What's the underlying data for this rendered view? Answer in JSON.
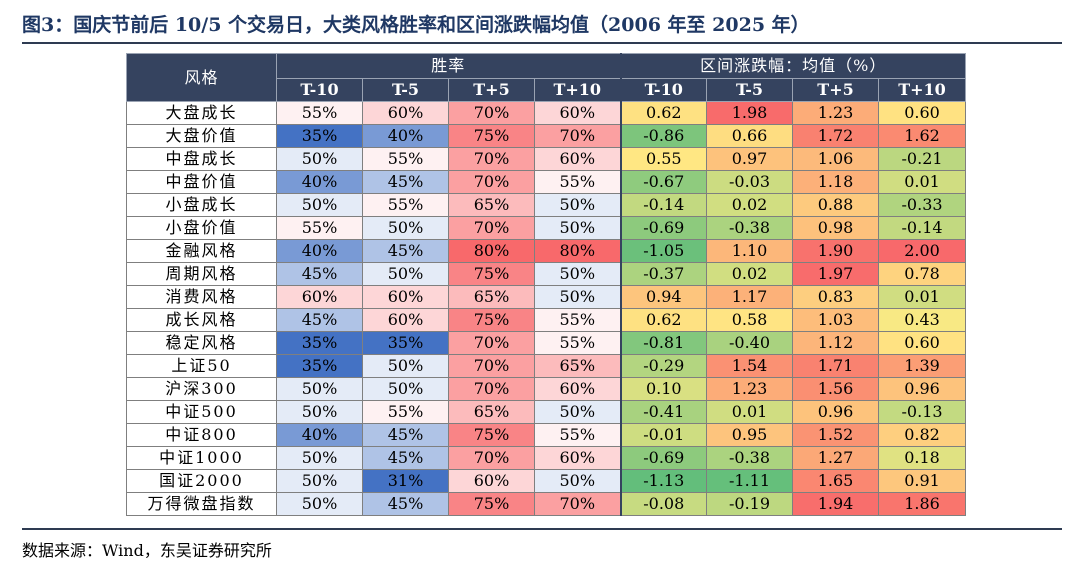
{
  "title": "图3：国庆节前后 10/5 个交易日，大类风格胜率和区间涨跌幅均值（2006 年至 2025 年）",
  "source": "数据来源：Wind，东吴证券研究所",
  "table": {
    "row_header_label": "风格",
    "groups": [
      {
        "label": "胜率",
        "span": 4
      },
      {
        "label": "区间涨跌幅：均值（%）",
        "span": 4
      }
    ],
    "columns": [
      "T-10",
      "T-5",
      "T+5",
      "T+10",
      "T-10",
      "T-5",
      "T+5",
      "T+10"
    ],
    "rows": [
      {
        "name": "大盘成长",
        "win": [
          "55%",
          "60%",
          "70%",
          "60%"
        ],
        "ret": [
          "0.62",
          "1.98",
          "1.23",
          "0.60"
        ]
      },
      {
        "name": "大盘价值",
        "win": [
          "35%",
          "40%",
          "75%",
          "70%"
        ],
        "ret": [
          "-0.86",
          "0.66",
          "1.72",
          "1.62"
        ]
      },
      {
        "name": "中盘成长",
        "win": [
          "50%",
          "55%",
          "70%",
          "60%"
        ],
        "ret": [
          "0.55",
          "0.97",
          "1.06",
          "-0.21"
        ]
      },
      {
        "name": "中盘价值",
        "win": [
          "40%",
          "45%",
          "70%",
          "55%"
        ],
        "ret": [
          "-0.67",
          "-0.03",
          "1.18",
          "0.01"
        ]
      },
      {
        "name": "小盘成长",
        "win": [
          "50%",
          "55%",
          "65%",
          "50%"
        ],
        "ret": [
          "-0.14",
          "0.02",
          "0.88",
          "-0.33"
        ]
      },
      {
        "name": "小盘价值",
        "win": [
          "55%",
          "50%",
          "70%",
          "50%"
        ],
        "ret": [
          "-0.69",
          "-0.38",
          "0.98",
          "-0.14"
        ]
      },
      {
        "name": "金融风格",
        "win": [
          "40%",
          "45%",
          "80%",
          "80%"
        ],
        "ret": [
          "-1.05",
          "1.10",
          "1.90",
          "2.00"
        ]
      },
      {
        "name": "周期风格",
        "win": [
          "45%",
          "50%",
          "75%",
          "50%"
        ],
        "ret": [
          "-0.37",
          "0.02",
          "1.97",
          "0.78"
        ]
      },
      {
        "name": "消费风格",
        "win": [
          "60%",
          "60%",
          "65%",
          "50%"
        ],
        "ret": [
          "0.94",
          "1.17",
          "0.83",
          "0.01"
        ]
      },
      {
        "name": "成长风格",
        "win": [
          "45%",
          "60%",
          "75%",
          "55%"
        ],
        "ret": [
          "0.62",
          "0.58",
          "1.03",
          "0.43"
        ]
      },
      {
        "name": "稳定风格",
        "win": [
          "35%",
          "35%",
          "70%",
          "55%"
        ],
        "ret": [
          "-0.81",
          "-0.40",
          "1.12",
          "0.60"
        ]
      },
      {
        "name": "上证50",
        "win": [
          "35%",
          "50%",
          "70%",
          "65%"
        ],
        "ret": [
          "-0.29",
          "1.54",
          "1.71",
          "1.39"
        ]
      },
      {
        "name": "沪深300",
        "win": [
          "50%",
          "50%",
          "70%",
          "60%"
        ],
        "ret": [
          "0.10",
          "1.23",
          "1.56",
          "0.96"
        ]
      },
      {
        "name": "中证500",
        "win": [
          "50%",
          "55%",
          "65%",
          "50%"
        ],
        "ret": [
          "-0.41",
          "0.01",
          "0.96",
          "-0.13"
        ]
      },
      {
        "name": "中证800",
        "win": [
          "40%",
          "45%",
          "75%",
          "55%"
        ],
        "ret": [
          "-0.01",
          "0.95",
          "1.52",
          "0.82"
        ]
      },
      {
        "name": "中证1000",
        "win": [
          "50%",
          "45%",
          "70%",
          "60%"
        ],
        "ret": [
          "-0.69",
          "-0.38",
          "1.27",
          "0.18"
        ]
      },
      {
        "name": "国证2000",
        "win": [
          "50%",
          "31%",
          "60%",
          "50%"
        ],
        "ret": [
          "-1.13",
          "-1.11",
          "1.65",
          "0.91"
        ]
      },
      {
        "name": "万得微盘指数",
        "win": [
          "50%",
          "45%",
          "75%",
          "70%"
        ],
        "ret": [
          "-0.08",
          "-0.19",
          "1.94",
          "1.86"
        ]
      }
    ],
    "colors": {
      "header_bg": "#35435f",
      "win_low": "#4472c4",
      "win_mid": "#ffffff",
      "win_high": "#f8696b",
      "ret_low": "#63be7b",
      "ret_mid": "#ffeb84",
      "ret_high": "#f8696b"
    }
  }
}
